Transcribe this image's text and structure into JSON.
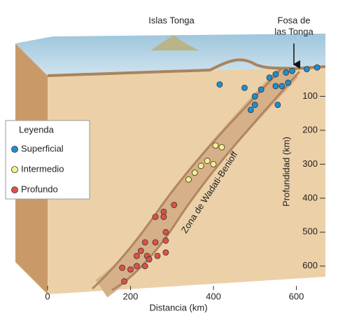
{
  "chart_data": {
    "type": "scatter",
    "annotations": {
      "islands": "Islas Tonga",
      "trench": [
        "Fosa de",
        "las Tonga"
      ],
      "zone": "Zona de Wadati-Benioff"
    },
    "legend_title": "Leyenda",
    "xlabel": "Distancia (km)",
    "ylabel": "Profundidad (km)",
    "xlim": [
      0,
      670
    ],
    "xticks": [
      0,
      200,
      400,
      600
    ],
    "ylim": [
      0,
      650
    ],
    "yticks": [
      100,
      200,
      300,
      400,
      500,
      600
    ],
    "y_inverted": true,
    "series": [
      {
        "name": "Superficial",
        "color": "#1e8fd0",
        "x": [
          415,
          475,
          535,
          550,
          575,
          590,
          580,
          550,
          565,
          515,
          500,
          625,
          650,
          500,
          490,
          555
        ],
        "values": [
          65,
          75,
          45,
          35,
          30,
          25,
          60,
          70,
          70,
          80,
          100,
          20,
          15,
          125,
          140,
          125
        ]
      },
      {
        "name": "Intermedio",
        "color": "#f6f08a",
        "x": [
          340,
          355,
          370,
          385,
          400,
          405,
          420
        ],
        "values": [
          345,
          325,
          305,
          290,
          300,
          245,
          250
        ]
      },
      {
        "name": "Profundo",
        "color": "#e0504a",
        "x": [
          305,
          280,
          260,
          280,
          285,
          260,
          285,
          235,
          240,
          225,
          215,
          215,
          235,
          245,
          265,
          285,
          180,
          200,
          185
        ],
        "values": [
          420,
          440,
          455,
          455,
          500,
          530,
          525,
          530,
          570,
          555,
          570,
          600,
          600,
          580,
          570,
          560,
          605,
          610,
          645
        ]
      }
    ]
  }
}
